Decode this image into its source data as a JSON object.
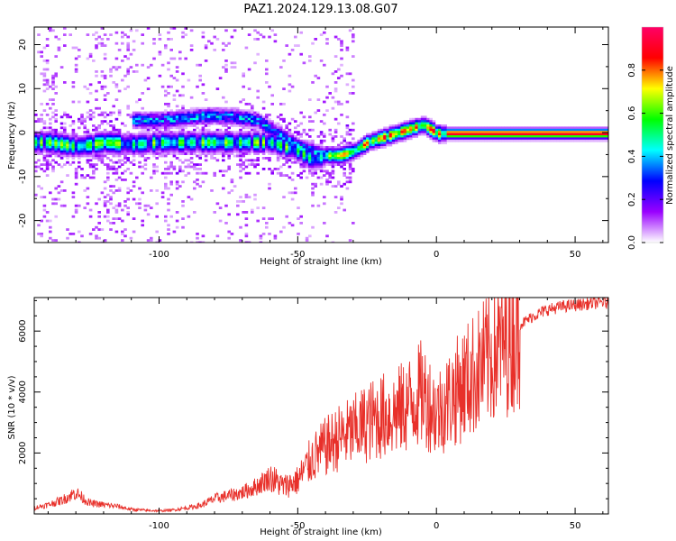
{
  "figure": {
    "title": "PAZ1.2024.129.13.08.G07"
  },
  "chart_data": [
    {
      "type": "heatmap",
      "xlabel": "Height of straight line (km)",
      "ylabel": "Frequency (Hz)",
      "xlim": [
        -145,
        62
      ],
      "ylim": [
        -25,
        24
      ],
      "x_ticks": [
        -100,
        -50,
        0,
        50
      ],
      "x_tick_labels": [
        "-100",
        "-50",
        "0",
        "50"
      ],
      "y_ticks": [
        -20,
        -10,
        0,
        10,
        20
      ],
      "y_tick_labels": [
        "-20",
        "-10",
        "0",
        "10",
        "20"
      ],
      "colorbar": {
        "label": "Normalized spectral amplitude",
        "range": [
          0,
          1
        ],
        "ticks": [
          0.0,
          0.2,
          0.4,
          0.6,
          0.8
        ],
        "tick_labels": [
          "0.0",
          "0.2",
          "0.4",
          "0.6",
          "0.8"
        ],
        "colors": [
          "#ffffff",
          "#9900ff",
          "#0000ff",
          "#00ffff",
          "#00ff00",
          "#ffff00",
          "#ff0000",
          "#ff0066"
        ]
      },
      "ridges": [
        {
          "name": "",
          "x": [
            -140,
            -130,
            -120,
            -110,
            -100,
            -90,
            -80,
            -70,
            -60,
            -50,
            -45,
            -40,
            -35,
            -30,
            -25,
            -20,
            -15,
            -10,
            -5,
            0,
            10,
            20,
            30,
            40,
            50,
            62
          ],
          "y": [
            -2,
            -3,
            -2,
            -2.5,
            -2,
            -2,
            -2,
            -2,
            -2,
            -4,
            -6,
            -5,
            -5,
            -4,
            -2,
            -1,
            0,
            1,
            2,
            0,
            0,
            0,
            0,
            0,
            0,
            0
          ]
        },
        {
          "name": "",
          "x": [
            -110,
            -100,
            -90,
            -85,
            -80,
            -75,
            -70,
            -65,
            -60,
            -55,
            -50,
            -45,
            -40
          ],
          "y": [
            3,
            3,
            3.5,
            4,
            4,
            4,
            3.5,
            3,
            1,
            -1,
            -3,
            -4,
            -5
          ]
        }
      ],
      "grid": false
    },
    {
      "type": "line",
      "xlabel": "Height of straight line (km)",
      "ylabel": "SNR (10 * v/v)",
      "xlim": [
        -145,
        62
      ],
      "ylim": [
        0,
        7100
      ],
      "x_ticks": [
        -100,
        -50,
        0,
        50
      ],
      "x_tick_labels": [
        "-100",
        "-50",
        "0",
        "50"
      ],
      "y_ticks": [
        2000,
        4000,
        6000
      ],
      "y_tick_labels": [
        "2000",
        "4000",
        "6000"
      ],
      "color": "#e8302a",
      "series": [
        {
          "name": "",
          "x": [
            -145,
            -140,
            -135,
            -130,
            -125,
            -120,
            -115,
            -110,
            -105,
            -100,
            -95,
            -90,
            -85,
            -80,
            -75,
            -70,
            -65,
            -60,
            -55,
            -50,
            -45,
            -40,
            -35,
            -30,
            -25,
            -20,
            -15,
            -10,
            -5,
            0,
            5,
            10,
            15,
            20,
            25,
            30,
            35,
            40,
            45,
            50,
            55,
            60,
            62
          ],
          "y": [
            200,
            300,
            450,
            700,
            350,
            300,
            250,
            150,
            120,
            100,
            130,
            200,
            280,
            500,
            600,
            700,
            900,
            1200,
            900,
            1100,
            1800,
            2200,
            2500,
            2700,
            3000,
            3200,
            3300,
            3600,
            4000,
            3300,
            3800,
            4300,
            4700,
            5200,
            5700,
            6200,
            6500,
            6700,
            6800,
            6850,
            6900,
            6950,
            6900
          ]
        }
      ],
      "grid": false
    }
  ]
}
